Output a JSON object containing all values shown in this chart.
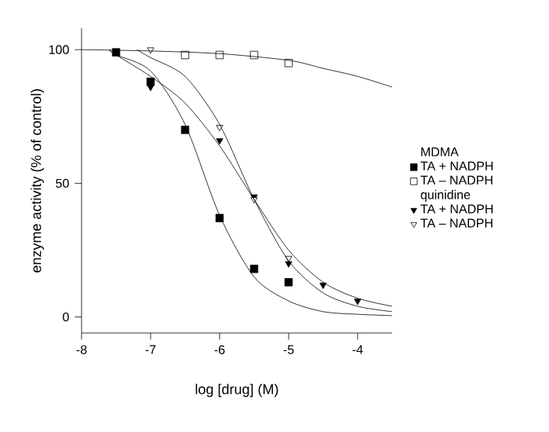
{
  "chart_data": {
    "type": "scatter",
    "xlabel": "log [drug] (M)",
    "ylabel": "enzyme activity (% of control)",
    "xlim": [
      -8,
      -3.5
    ],
    "ylim": [
      -6,
      108
    ],
    "xticks": [
      -8,
      -7,
      -6,
      -5,
      -4
    ],
    "yticks": [
      0,
      50,
      100
    ],
    "grid": false,
    "legend": "right",
    "annotations": [
      "MDMA",
      "quinidine"
    ],
    "series": [
      {
        "name": "TA + NADPH",
        "color": "#000000",
        "marker": "square",
        "x": [
          -7.5,
          -7,
          -6.5,
          -6,
          -5.5,
          -5
        ],
        "values": [
          99,
          88,
          70,
          37,
          18,
          13
        ]
      },
      {
        "name": "TA – NADPH",
        "color": "#ffffff",
        "marker": "square",
        "x": [
          -6.5,
          -6,
          -5.5,
          -5
        ],
        "values": [
          98,
          98,
          98,
          95
        ]
      },
      {
        "name": "TA + NADPH",
        "color": "#000000",
        "marker": "triangle",
        "x": [
          -7,
          -6,
          -5.5,
          -5,
          -4.5,
          -4
        ],
        "values": [
          86,
          66,
          45,
          20,
          12,
          6
        ]
      },
      {
        "name": "TA – NADPH",
        "color": "#ffffff",
        "marker": "triangle",
        "x": [
          -7,
          -6,
          -5.5,
          -5
        ],
        "values": [
          100,
          71,
          44,
          22
        ]
      },
      {
        "type": "line",
        "color": "#000000",
        "marker": "none",
        "x": [
          -7.6,
          -7.5,
          -7,
          -6.5,
          -6,
          -5.5,
          -5,
          -4.5,
          -4,
          -3.5
        ],
        "values": [
          100,
          98,
          92,
          72,
          38,
          15,
          6,
          2,
          1,
          0.5
        ]
      },
      {
        "type": "line",
        "color": "#000000",
        "marker": "none",
        "x": [
          -8,
          -7,
          -6,
          -5,
          -4.5,
          -4,
          -3.5
        ],
        "values": [
          100,
          99.5,
          98.5,
          96,
          93,
          90,
          86
        ]
      },
      {
        "type": "line",
        "color": "#000000",
        "marker": "none",
        "x": [
          -7.6,
          -7.5,
          -7,
          -6.5,
          -6,
          -5.5,
          -5,
          -4.5,
          -4,
          -3.5
        ],
        "values": [
          100,
          98,
          90,
          80,
          64,
          44,
          25,
          13,
          7,
          4
        ]
      },
      {
        "type": "line",
        "color": "#000000",
        "marker": "none",
        "x": [
          -7.2,
          -7,
          -6.5,
          -6,
          -5.5,
          -5,
          -4.5,
          -4,
          -3.5
        ],
        "values": [
          100,
          97,
          90,
          72,
          44,
          21,
          9,
          4,
          2
        ]
      }
    ]
  }
}
